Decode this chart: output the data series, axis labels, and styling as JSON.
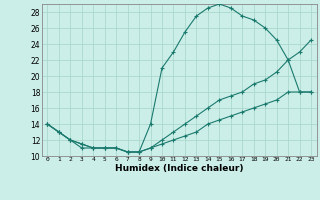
{
  "title": "",
  "xlabel": "Humidex (Indice chaleur)",
  "ylabel": "",
  "xlim": [
    -0.5,
    23.5
  ],
  "ylim": [
    10,
    29
  ],
  "xticks": [
    0,
    1,
    2,
    3,
    4,
    5,
    6,
    7,
    8,
    9,
    10,
    11,
    12,
    13,
    14,
    15,
    16,
    17,
    18,
    19,
    20,
    21,
    22,
    23
  ],
  "yticks": [
    10,
    12,
    14,
    16,
    18,
    20,
    22,
    24,
    26,
    28
  ],
  "bg_color": "#cceee8",
  "line_color": "#1a7a6e",
  "grid_color": "#aad8cc",
  "line1_x": [
    0,
    1,
    2,
    3,
    4,
    5,
    6,
    7,
    8,
    9,
    10,
    11,
    12,
    13,
    14,
    15,
    16,
    17,
    18,
    19,
    20,
    21,
    22,
    23
  ],
  "line1_y": [
    14,
    13,
    12,
    11,
    11,
    11,
    11,
    10.5,
    10.5,
    14,
    21,
    23,
    25.5,
    27.5,
    28.5,
    29,
    28.5,
    27.5,
    27,
    26,
    24.5,
    22,
    18,
    18
  ],
  "line2_x": [
    0,
    1,
    2,
    3,
    4,
    5,
    6,
    7,
    8,
    9,
    10,
    11,
    12,
    13,
    14,
    15,
    16,
    17,
    18,
    19,
    20,
    21,
    22,
    23
  ],
  "line2_y": [
    14,
    13,
    12,
    11.5,
    11,
    11,
    11,
    10.5,
    10.5,
    11,
    12,
    13,
    14,
    15,
    16,
    17,
    17.5,
    18,
    19,
    19.5,
    20.5,
    22,
    23,
    24.5
  ],
  "line3_x": [
    0,
    1,
    2,
    3,
    4,
    5,
    6,
    7,
    8,
    9,
    10,
    11,
    12,
    13,
    14,
    15,
    16,
    17,
    18,
    19,
    20,
    21,
    22,
    23
  ],
  "line3_y": [
    14,
    13,
    12,
    11.5,
    11,
    11,
    11,
    10.5,
    10.5,
    11,
    11.5,
    12,
    12.5,
    13,
    14,
    14.5,
    15,
    15.5,
    16,
    16.5,
    17,
    18,
    18,
    18
  ]
}
